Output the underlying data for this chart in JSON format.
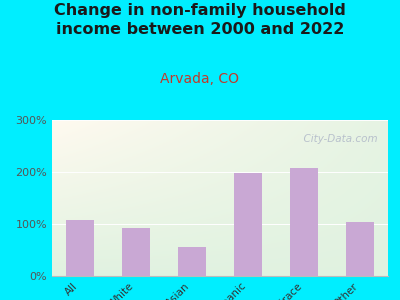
{
  "title": "Change in non-family household\nincome between 2000 and 2022",
  "subtitle": "Arvada, CO",
  "categories": [
    "All",
    "White",
    "Asian",
    "Hispanic",
    "Multirace",
    "Other"
  ],
  "values": [
    107,
    93,
    55,
    198,
    207,
    103
  ],
  "bar_color": "#c9a8d4",
  "background_outer": "#00eeff",
  "title_color": "#1a1a1a",
  "subtitle_color": "#c0392b",
  "ylim": [
    0,
    300
  ],
  "yticks": [
    0,
    100,
    200,
    300
  ],
  "watermark": "  City-Data.com",
  "title_fontsize": 11.5,
  "subtitle_fontsize": 10
}
